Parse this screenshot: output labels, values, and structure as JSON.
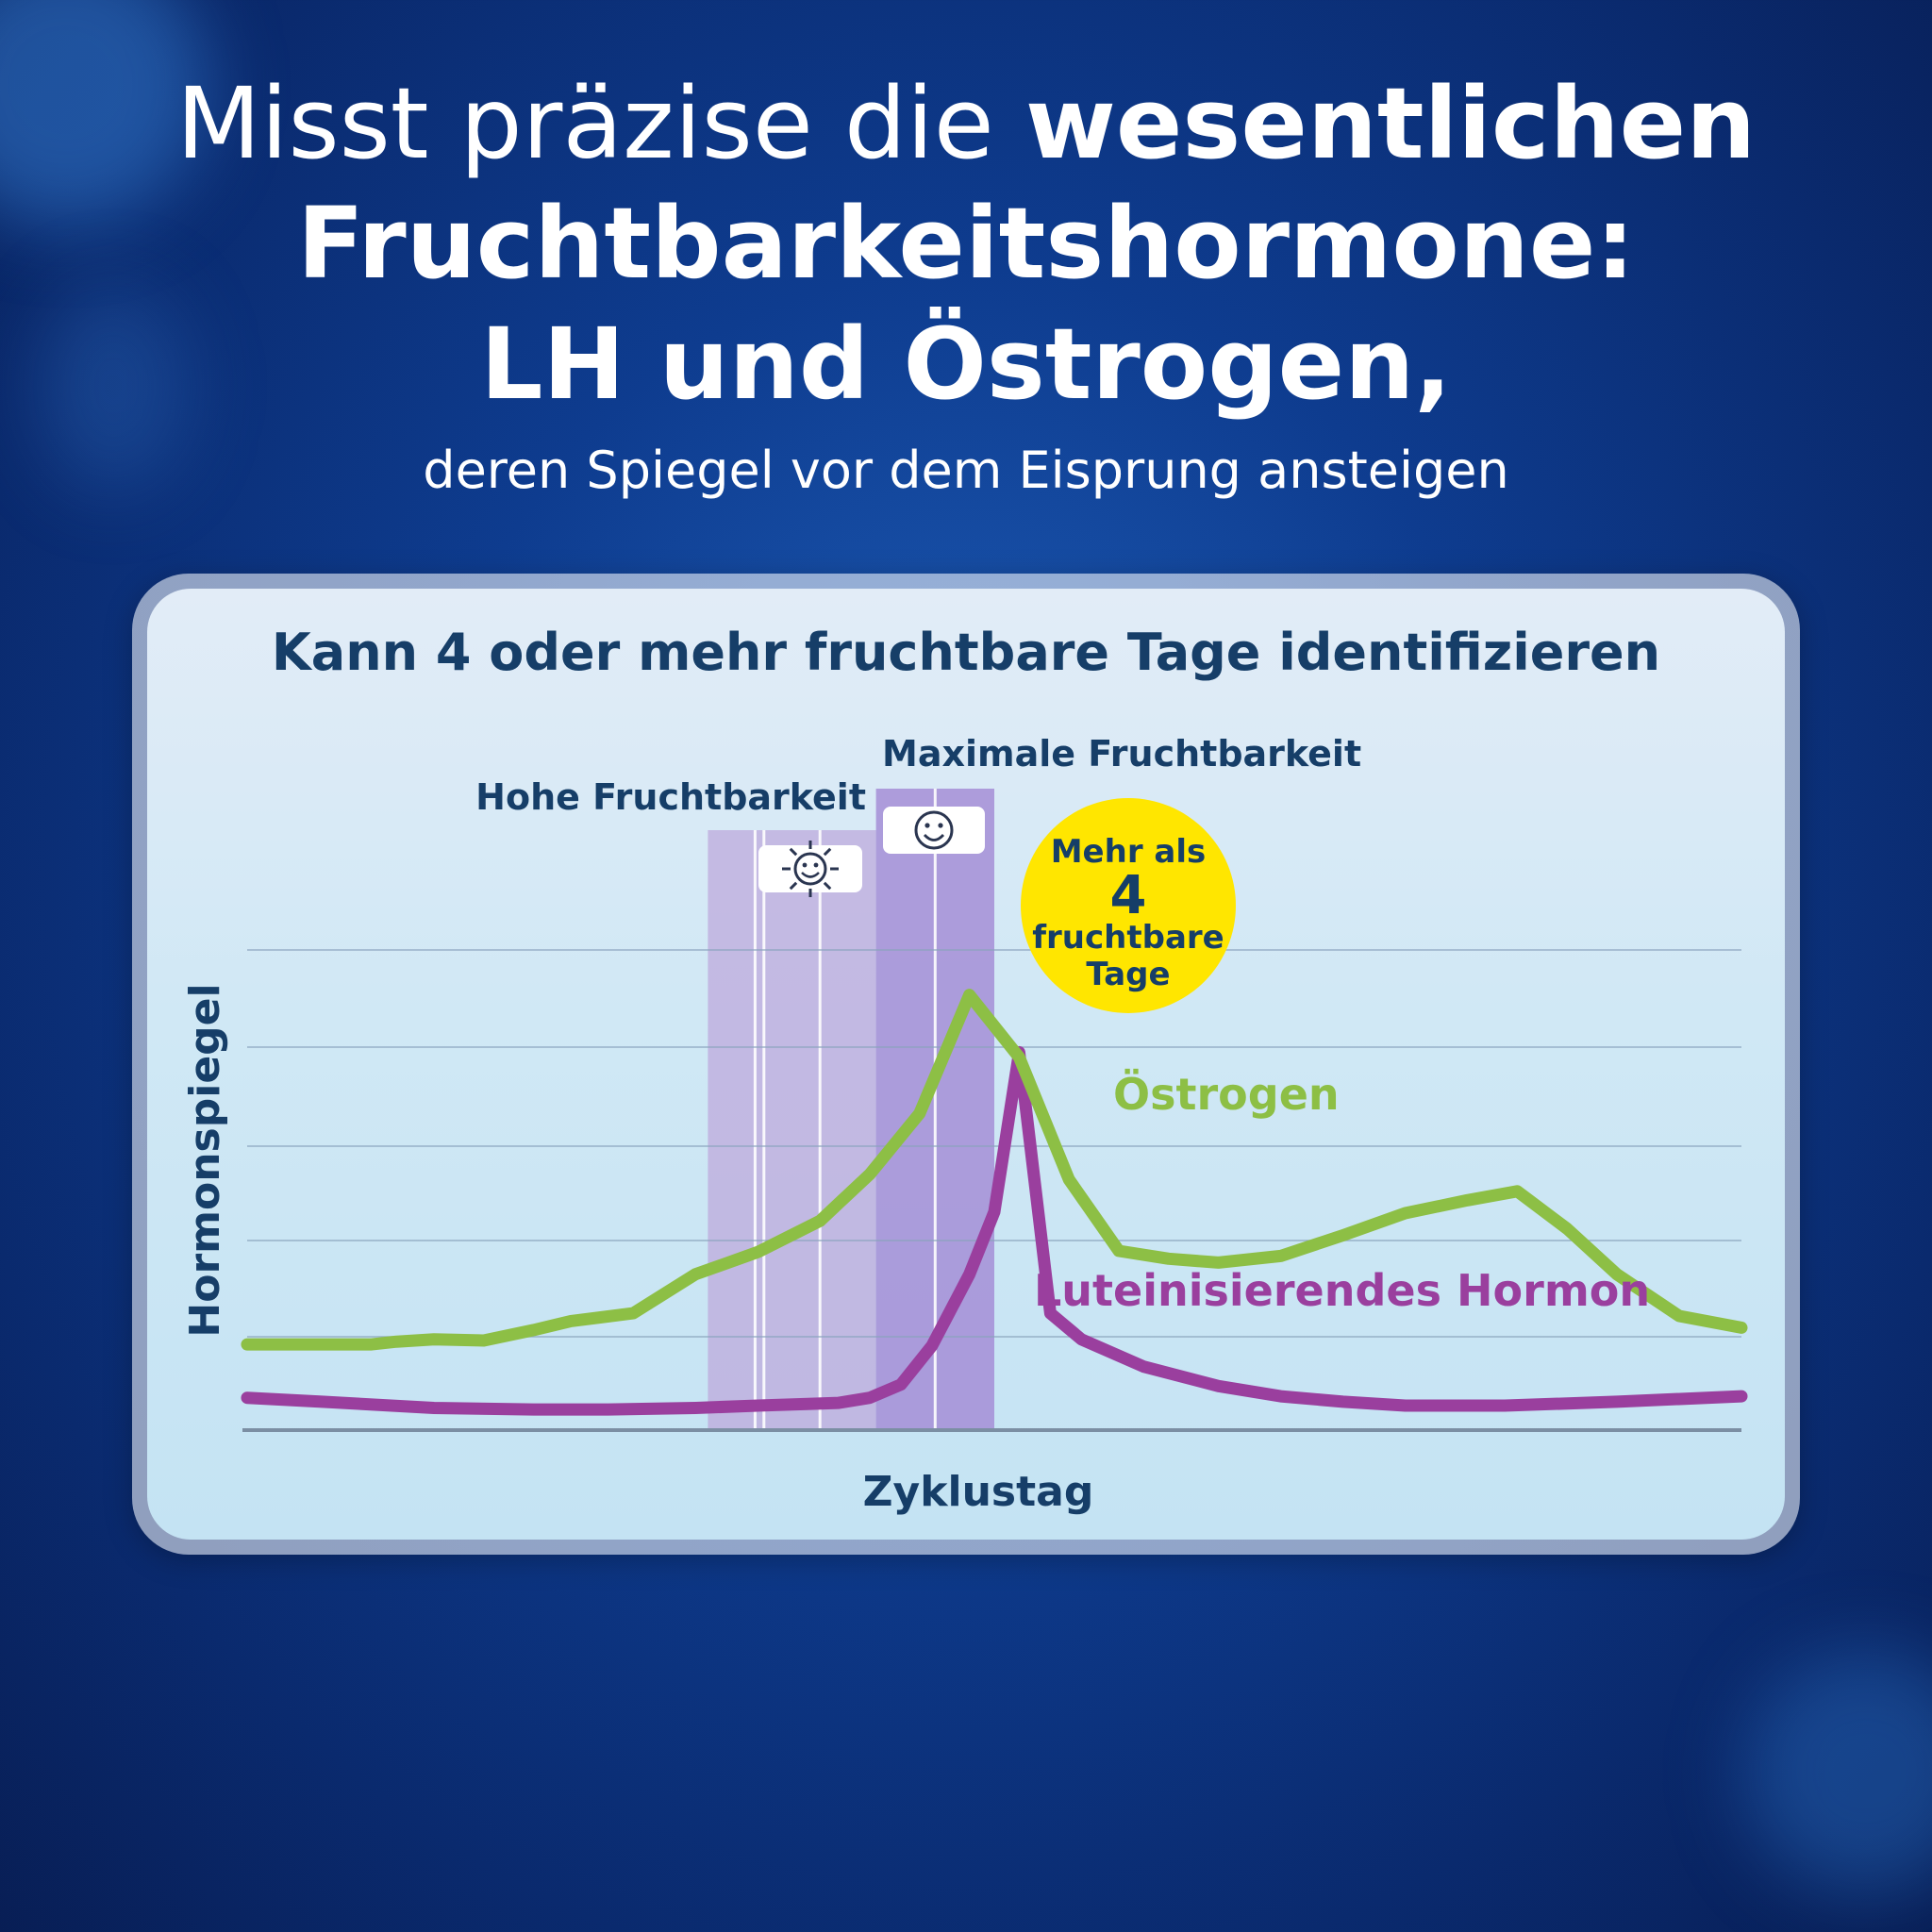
{
  "headline": {
    "line1_light": "Misst präzise die ",
    "line1_bold": "wesentlichen",
    "line2": "Fruchtbarkeitshormone:",
    "line3": "LH und Östrogen,",
    "subline": "deren Spiegel vor dem Eisprung ansteigen"
  },
  "colors": {
    "estrogen": "#8dbf45",
    "lh": "#9a3f9e",
    "title": "#163e68",
    "badge": "#ffe600",
    "high_band": "#bda9dc",
    "peak_band": "#a58ed6"
  },
  "chart_data": {
    "type": "line",
    "title": "Kann 4 oder mehr fruchtbare Tage identifizieren",
    "xlabel": "Zyklustag",
    "ylabel": "Hormonspiegel",
    "xlim": [
      0,
      24
    ],
    "ylim": [
      0,
      100
    ],
    "grid": true,
    "series": [
      {
        "name": "Östrogen",
        "x": [
          0,
          1,
          2,
          2.4,
          3,
          3.8,
          4.6,
          5.2,
          6.2,
          7.2,
          8.2,
          9.2,
          10,
          10.8,
          11.6,
          12.4,
          13.2,
          14.0,
          14.8,
          15.6,
          16.6,
          17.6,
          18.6,
          19.6,
          20.4,
          21.2,
          22.0,
          23.0,
          24.0
        ],
        "values": [
          22,
          22,
          22,
          22.7,
          23.3,
          23,
          25.7,
          28,
          30,
          40,
          45.7,
          53.7,
          65.7,
          81.3,
          111.7,
          95.7,
          64.3,
          46,
          44,
          43,
          44.7,
          50,
          55.7,
          59,
          61.3,
          51.7,
          40,
          29.3,
          26.3
        ]
      },
      {
        "name": "Luteinisierendes Hormon",
        "x": [
          0,
          1.2,
          3,
          4.6,
          5.8,
          7.2,
          8.2,
          9.0,
          9.5,
          10.0,
          10.5,
          11.0,
          11.6,
          12.0,
          12.4,
          12.9,
          13.4,
          14.4,
          15.6,
          16.6,
          17.6,
          18.6,
          19.6,
          20.2,
          22.0,
          24.0
        ],
        "values": [
          8.3,
          7.3,
          5.7,
          5.3,
          5.3,
          5.7,
          6.3,
          6.7,
          7,
          8.3,
          11.7,
          21.7,
          40,
          56,
          97,
          30,
          23.3,
          16.3,
          11.3,
          8.7,
          7.3,
          6.3,
          6.3,
          6.3,
          7.3,
          8.7
        ]
      }
    ],
    "annotations": {
      "high_fertility": "Hohe Fruchtbarkeit",
      "peak_fertility": "Maximale Fruchtbarkeit",
      "badge": [
        "Mehr als",
        "4",
        "fruchtbare",
        "Tage"
      ],
      "bands": [
        {
          "label": "Hohe Fruchtbarkeit",
          "x_start": 7.4,
          "x_end": 10.1,
          "days": 3
        },
        {
          "label": "Maximale Fruchtbarkeit",
          "x_start": 10.1,
          "x_end": 12.0,
          "days": 2
        }
      ]
    }
  }
}
